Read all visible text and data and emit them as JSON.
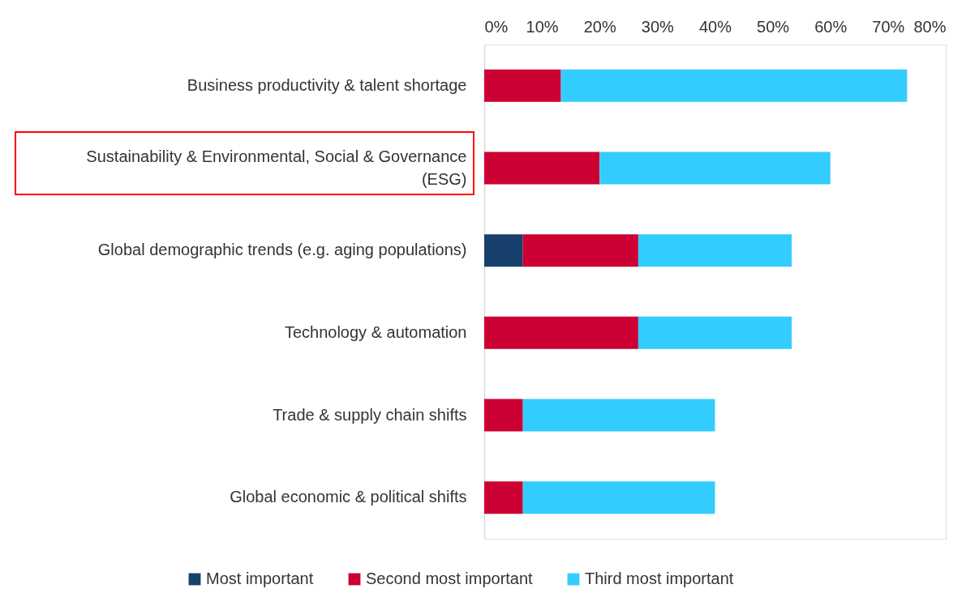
{
  "chart_data": {
    "type": "bar",
    "orientation": "horizontal",
    "stacked": true,
    "categories": [
      "Business productivity & talent shortage",
      "Sustainability & Environmental, Social & Governance (ESG)",
      "Global demographic trends (e.g. aging populations)",
      "Technology & automation",
      "Trade & supply chain shifts",
      "Global economic & political shifts"
    ],
    "series": [
      {
        "name": "Most important",
        "color": "#17406d",
        "values": [
          null,
          null,
          6.7,
          null,
          null,
          null
        ]
      },
      {
        "name": "Second most important",
        "color": "#cc0033",
        "values": [
          13.3,
          20,
          20,
          26.7,
          6.7,
          6.7
        ]
      },
      {
        "name": "Third most important",
        "color": "#33ccff",
        "values": [
          60,
          40,
          26.6,
          26.6,
          33.3,
          33.3
        ]
      }
    ],
    "xlim": [
      0,
      80
    ],
    "xticks": [
      {
        "value": 0,
        "label": "0%"
      },
      {
        "value": 10,
        "label": "10%"
      },
      {
        "value": 20,
        "label": "20%"
      },
      {
        "value": 30,
        "label": "30%"
      },
      {
        "value": 40,
        "label": "40%"
      },
      {
        "value": 50,
        "label": "50%"
      },
      {
        "value": 60,
        "label": "60%"
      },
      {
        "value": 70,
        "label": "70%"
      },
      {
        "value": 80,
        "label": "80%"
      }
    ],
    "grid": false,
    "legend": "bottom"
  }
}
